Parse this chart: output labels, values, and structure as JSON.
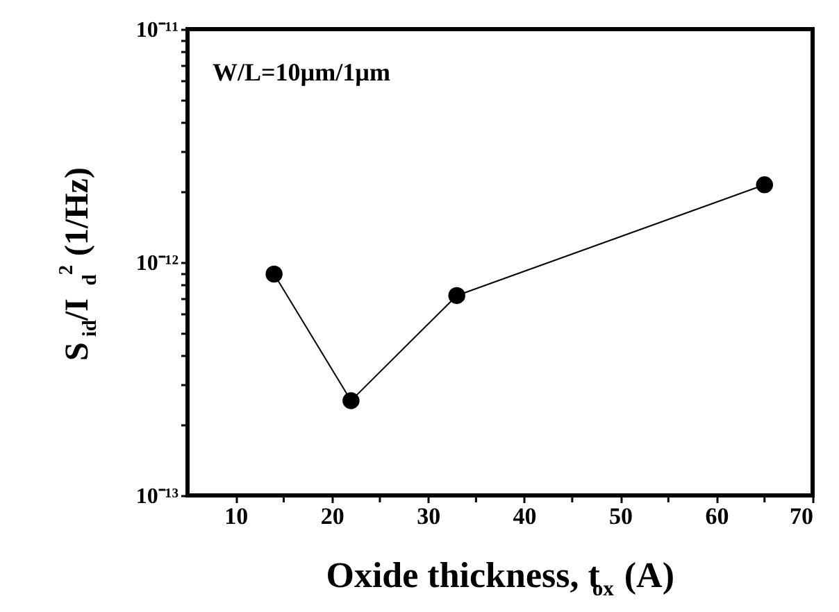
{
  "chart_data": {
    "type": "line",
    "xlabel": "Oxide thickness, t$_{ox}$ (A)",
    "ylabel": "S$_{id}$/I$_{d}$$^{2}$ (1/Hz)",
    "annotations": [
      "W/L=10µm/1µm"
    ],
    "x": [
      14,
      22,
      33,
      65
    ],
    "series": [
      {
        "color": "#000000",
        "values": [
          8.9e-13,
          2.55e-13,
          7.2e-13,
          2.15e-12
        ]
      }
    ],
    "xlim": [
      5,
      70
    ],
    "xticks": [
      10,
      {
        "value": 15,
        "label": null
      },
      20,
      {
        "value": 25,
        "label": null
      },
      30,
      {
        "value": 35,
        "label": null
      },
      40,
      {
        "value": 45,
        "label": null
      },
      50,
      {
        "value": 55,
        "label": null
      },
      60,
      {
        "value": 65,
        "label": null
      },
      70
    ],
    "ylim": [
      1e-13,
      1e-11
    ],
    "log": true,
    "yticks": [
      {
        "value": 1e-13,
        "label": "10⁻¹³"
      },
      {
        "value": 2e-13,
        "label": null
      },
      {
        "value": 3e-13,
        "label": null
      },
      {
        "value": 4e-13,
        "label": null
      },
      {
        "value": 5e-13,
        "label": null
      },
      {
        "value": 6e-13,
        "label": null
      },
      {
        "value": 7e-13,
        "label": null
      },
      {
        "value": 8e-13,
        "label": null
      },
      {
        "value": 9e-13,
        "label": null
      },
      {
        "value": 1e-12,
        "label": "10⁻¹²"
      },
      {
        "value": 2e-12,
        "label": null
      },
      {
        "value": 3e-12,
        "label": null
      },
      {
        "value": 4e-12,
        "label": null
      },
      {
        "value": 5e-12,
        "label": null
      },
      {
        "value": 6e-12,
        "label": null
      },
      {
        "value": 7e-12,
        "label": null
      },
      {
        "value": 8e-12,
        "label": null
      },
      {
        "value": 9e-12,
        "label": null
      },
      {
        "value": 1e-11,
        "label": "10⁻¹¹"
      }
    ],
    "grid": false,
    "marker": "circle",
    "line_style": "solid"
  }
}
